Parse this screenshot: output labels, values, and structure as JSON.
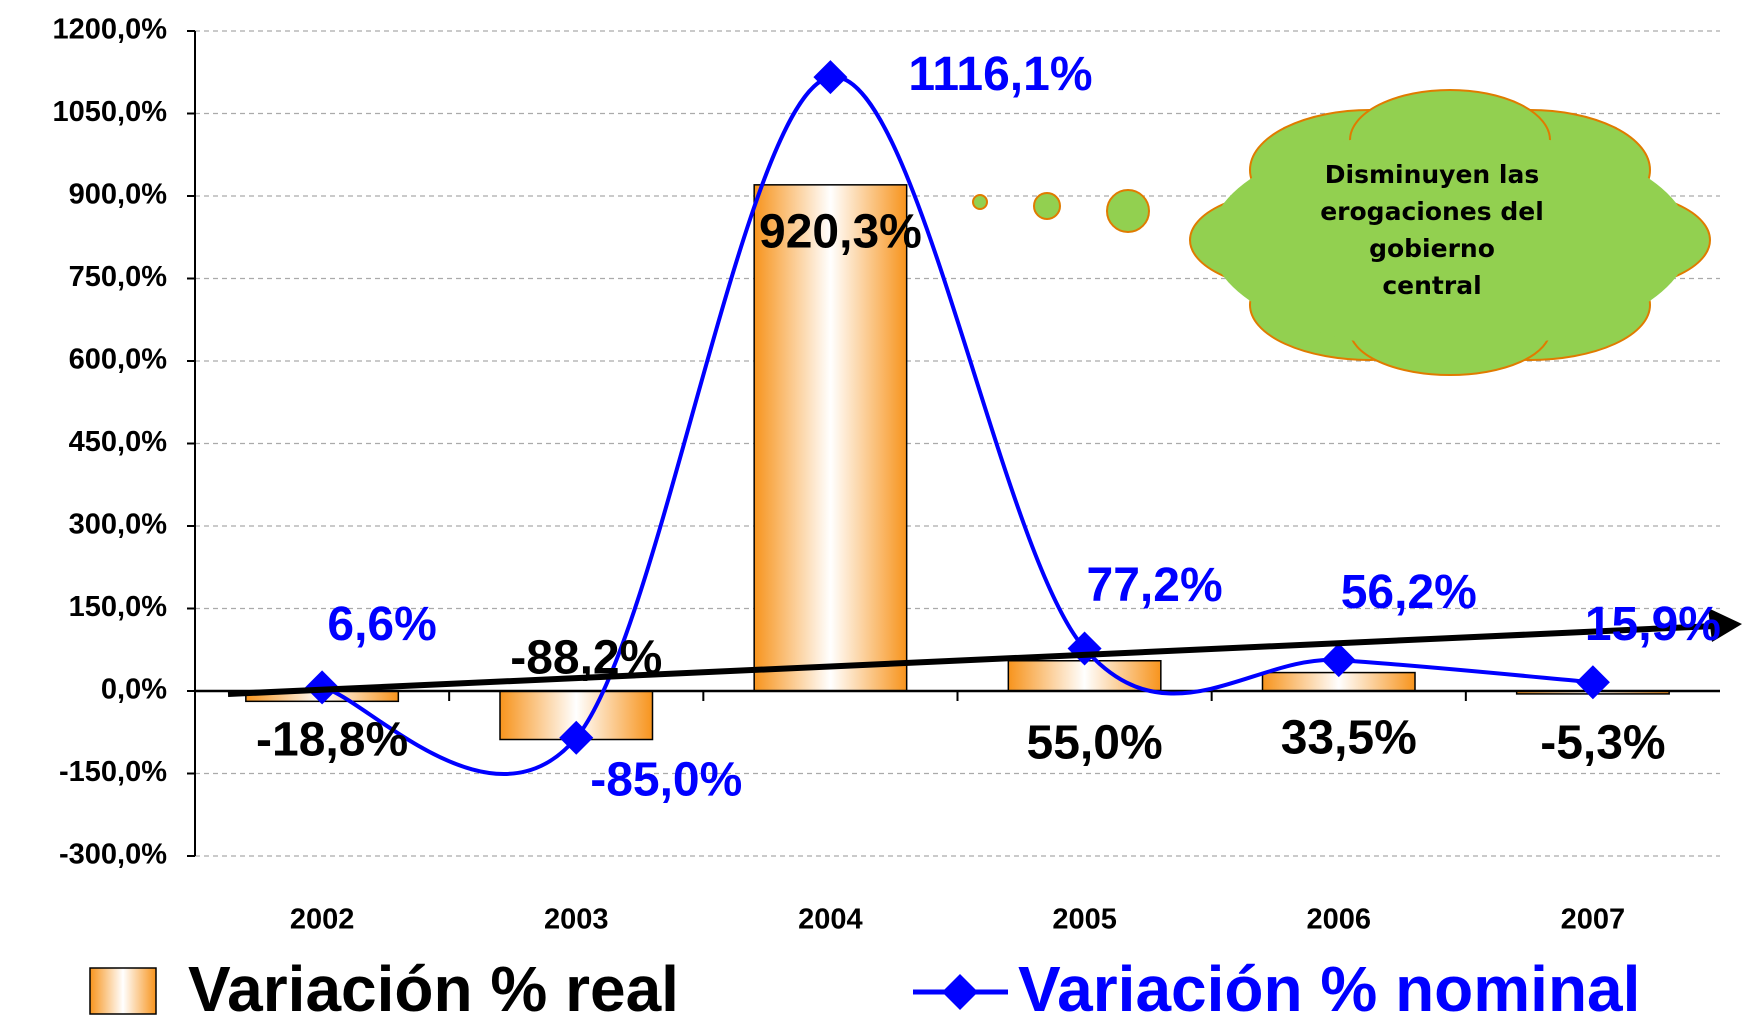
{
  "chart_data": {
    "type": "bar_line",
    "categories": [
      "2002",
      "2003",
      "2004",
      "2005",
      "2006",
      "2007"
    ],
    "series": [
      {
        "name": "Variación % real",
        "type": "bar",
        "color": "#f7941d",
        "values": [
          -18.8,
          -88.2,
          920.3,
          55.0,
          33.5,
          -5.3
        ],
        "value_labels": [
          "-18,8%",
          "-88,2%",
          "920,3%",
          "55,0%",
          "33,5%",
          "-5,3%"
        ]
      },
      {
        "name": "Variación % nominal",
        "type": "line",
        "color": "#0000ff",
        "values": [
          6.6,
          -85.0,
          1116.1,
          77.2,
          56.2,
          15.9
        ],
        "value_labels": [
          "6,6%",
          "-85,0%",
          "1116,1%",
          "77,2%",
          "56,2%",
          "15,9%"
        ]
      }
    ],
    "ylim": [
      -300,
      1200
    ],
    "yticks": [
      {
        "value": -300,
        "label": "-300,0%"
      },
      {
        "value": -150,
        "label": "-150,0%"
      },
      {
        "value": 0,
        "label": "0,0%"
      },
      {
        "value": 150,
        "label": "150,0%"
      },
      {
        "value": 300,
        "label": "300,0%"
      },
      {
        "value": 450,
        "label": "450,0%"
      },
      {
        "value": 600,
        "label": "600,0%"
      },
      {
        "value": 750,
        "label": "750,0%"
      },
      {
        "value": 900,
        "label": "900,0%"
      },
      {
        "value": 1050,
        "label": "1050,0%"
      },
      {
        "value": 1200,
        "label": "1200,0%"
      }
    ],
    "grid": true,
    "legend": "bottom",
    "annotation": [
      "Disminuyen las",
      "erogaciones del",
      "gobierno",
      "central"
    ]
  }
}
